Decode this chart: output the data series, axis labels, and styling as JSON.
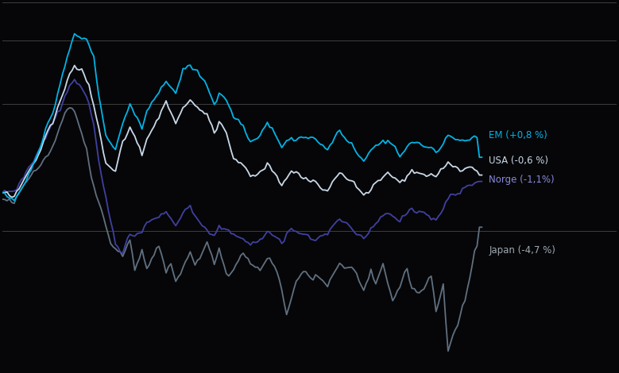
{
  "background_color": "#060608",
  "plot_bg_color": "#060608",
  "grid_color": "#888888",
  "line_colors": {
    "EM": "#00b4e6",
    "USA": "#c8d8e8",
    "Norge": "#4040a0",
    "Japan": "#607080"
  },
  "labels": {
    "EM": "EM (+0,8 %)",
    "USA": "USA (-0,6 %)",
    "Norge": "Norge (-1,1%)",
    "Japan": "Japan (-4,7 %)"
  },
  "label_colors": {
    "EM": "#00b4e6",
    "USA": "#c8d8e8",
    "Norge": "#8888dd",
    "Japan": "#a0aab0"
  },
  "figsize": [
    7.79,
    4.7
  ],
  "dpi": 100,
  "ylim": [
    -16,
    13
  ],
  "n_points": 200
}
